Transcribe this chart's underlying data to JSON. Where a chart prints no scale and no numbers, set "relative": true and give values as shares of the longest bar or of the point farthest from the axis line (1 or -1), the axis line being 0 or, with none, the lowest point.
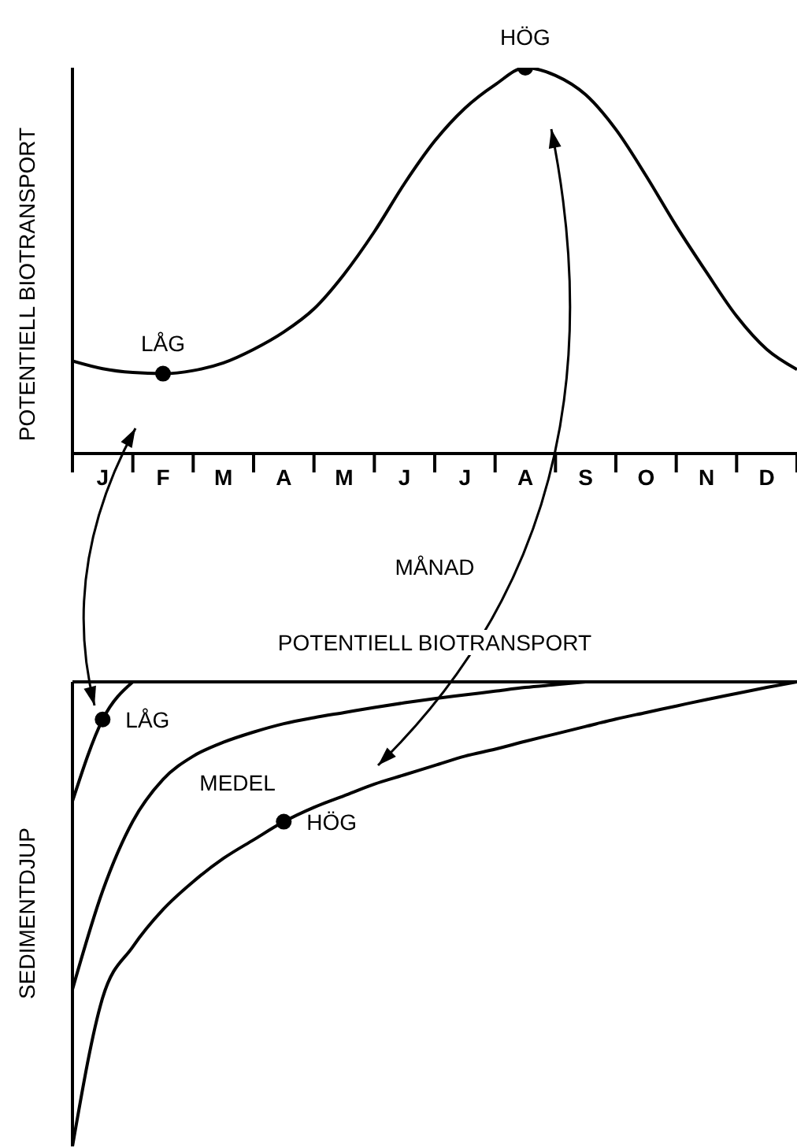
{
  "chart_data": [
    {
      "type": "line",
      "relative": true,
      "xlabel": "MÅNAD",
      "ylabel": "POTENTIELL BIOTRANSPORT",
      "categories": [
        null,
        "J",
        null,
        "F",
        null,
        "M",
        null,
        "A",
        null,
        "M",
        null,
        "J",
        null,
        "J",
        null,
        "A",
        null,
        "S",
        null,
        "O",
        null,
        "N",
        null,
        "D",
        null
      ],
      "series": [
        {
          "color": "#000000",
          "values": [
            0.24,
            0.22,
            0.21,
            0.207,
            0.215,
            0.235,
            0.27,
            0.315,
            0.375,
            0.465,
            0.575,
            0.7,
            0.81,
            0.895,
            0.956,
            1,
            0.98,
            0.93,
            0.84,
            0.72,
            0.59,
            0.47,
            0.356,
            0.27,
            0.218
          ]
        },
        {
          "type": "scatter",
          "name": "LÅG",
          "color": "#000000",
          "values": [
            null,
            null,
            null,
            0.207,
            null,
            null,
            null,
            null,
            null,
            null,
            null,
            null,
            null,
            null,
            null,
            null,
            null,
            null,
            null,
            null,
            null,
            null,
            null,
            null,
            null
          ]
        },
        {
          "type": "scatter",
          "name": "HÖG",
          "color": "#000000",
          "values": [
            null,
            null,
            null,
            null,
            null,
            null,
            null,
            null,
            null,
            null,
            null,
            null,
            null,
            null,
            null,
            1,
            null,
            null,
            null,
            null,
            null,
            null,
            null,
            null,
            null
          ]
        }
      ]
    },
    {
      "type": "line",
      "relative": true,
      "xlabel": "POTENTIELL BIOTRANSPORT",
      "ylabel": "SEDIMENTDJUP",
      "categories": [
        null,
        null,
        null,
        null,
        null,
        null,
        null,
        null,
        null,
        null,
        null,
        null,
        null,
        null,
        null,
        null,
        null,
        null,
        null,
        null,
        null,
        null,
        null,
        null,
        null
      ],
      "series": [
        {
          "color": "#000000",
          "values": [
            -0.257,
            -0.081,
            0,
            null,
            null,
            null,
            null,
            null,
            null,
            null,
            null,
            null,
            null,
            null,
            null,
            null,
            null,
            null,
            null,
            null,
            null,
            null,
            null,
            null,
            null
          ]
        },
        {
          "name": "MEDEL",
          "color": "#000000",
          "values": [
            -0.662,
            -0.45,
            -0.3,
            -0.21,
            -0.16,
            -0.13,
            -0.108,
            -0.09,
            -0.077,
            -0.066,
            -0.055,
            -0.045,
            -0.036,
            -0.028,
            -0.02,
            -0.012,
            -0.006,
            0,
            null,
            null,
            null,
            null,
            null,
            null,
            null
          ]
        },
        {
          "color": "#000000",
          "values": [
            -1,
            -0.68,
            -0.57,
            -0.49,
            -0.43,
            -0.38,
            -0.34,
            -0.301,
            -0.27,
            -0.245,
            -0.22,
            -0.2,
            -0.18,
            -0.16,
            -0.145,
            -0.128,
            -0.112,
            -0.096,
            -0.08,
            -0.066,
            -0.052,
            -0.038,
            -0.025,
            -0.012,
            0
          ]
        },
        {
          "type": "scatter",
          "name": "LÅG",
          "color": "#000000",
          "values": [
            null,
            -0.081,
            null,
            null,
            null,
            null,
            null,
            null,
            null,
            null,
            null,
            null,
            null,
            null,
            null,
            null,
            null,
            null,
            null,
            null,
            null,
            null,
            null,
            null,
            null
          ]
        },
        {
          "type": "scatter",
          "name": "HÖG",
          "color": "#000000",
          "values": [
            null,
            null,
            null,
            null,
            null,
            null,
            null,
            -0.301,
            null,
            null,
            null,
            null,
            null,
            null,
            null,
            null,
            null,
            null,
            null,
            null,
            null,
            null,
            null,
            null,
            null
          ]
        }
      ]
    }
  ]
}
